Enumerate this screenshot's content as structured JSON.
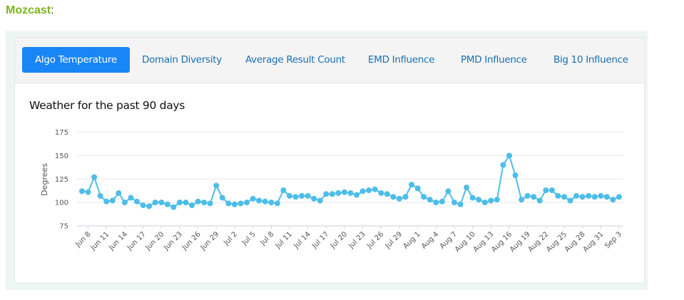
{
  "page": {
    "title": "Mozcast",
    "title_suffix": ":"
  },
  "tabs": [
    {
      "label": "Algo Temperature",
      "active": true
    },
    {
      "label": "Domain Diversity",
      "active": false
    },
    {
      "label": "Average Result Count",
      "active": false
    },
    {
      "label": "EMD Influence",
      "active": false
    },
    {
      "label": "PMD Influence",
      "active": false
    },
    {
      "label": "Big 10 Influence",
      "active": false
    }
  ],
  "colors": {
    "brand_green": "#7cb518",
    "active_tab": "#1886f5",
    "tab_text": "#1a6fb3",
    "series": "#4dbde9",
    "panel_bg": "#eef6f4"
  },
  "chart_data": {
    "type": "line",
    "title": "Weather for the past 90 days",
    "xlabel": "",
    "ylabel": "Degrees",
    "ylim": [
      75,
      175
    ],
    "yticks": [
      75,
      100,
      125,
      150,
      175
    ],
    "grid": true,
    "legend": "none",
    "x": [
      "Jun 7",
      "Jun 8",
      "Jun 9",
      "Jun 10",
      "Jun 11",
      "Jun 12",
      "Jun 13",
      "Jun 14",
      "Jun 15",
      "Jun 16",
      "Jun 17",
      "Jun 18",
      "Jun 19",
      "Jun 20",
      "Jun 21",
      "Jun 22",
      "Jun 23",
      "Jun 24",
      "Jun 25",
      "Jun 26",
      "Jun 27",
      "Jun 28",
      "Jun 29",
      "Jun 30",
      "Jul 1",
      "Jul 2",
      "Jul 3",
      "Jul 4",
      "Jul 5",
      "Jul 6",
      "Jul 7",
      "Jul 8",
      "Jul 9",
      "Jul 10",
      "Jul 11",
      "Jul 12",
      "Jul 13",
      "Jul 14",
      "Jul 15",
      "Jul 16",
      "Jul 17",
      "Jul 18",
      "Jul 19",
      "Jul 20",
      "Jul 21",
      "Jul 22",
      "Jul 23",
      "Jul 24",
      "Jul 25",
      "Jul 26",
      "Jul 27",
      "Jul 28",
      "Jul 29",
      "Jul 30",
      "Jul 31",
      "Aug 1",
      "Aug 2",
      "Aug 3",
      "Aug 4",
      "Aug 5",
      "Aug 6",
      "Aug 7",
      "Aug 8",
      "Aug 9",
      "Aug 10",
      "Aug 11",
      "Aug 12",
      "Aug 13",
      "Aug 14",
      "Aug 15",
      "Aug 16",
      "Aug 17",
      "Aug 18",
      "Aug 19",
      "Aug 20",
      "Aug 21",
      "Aug 22",
      "Aug 23",
      "Aug 24",
      "Aug 25",
      "Aug 26",
      "Aug 27",
      "Aug 28",
      "Aug 29",
      "Aug 30",
      "Aug 31",
      "Sep 1",
      "Sep 2",
      "Sep 3"
    ],
    "xtick_labels": [
      "Jun 8",
      "Jun 11",
      "Jun 14",
      "Jun 17",
      "Jun 20",
      "Jun 23",
      "Jun 26",
      "Jun 29",
      "Jul 2",
      "Jul 5",
      "Jul 8",
      "Jul 11",
      "Jul 14",
      "Jul 17",
      "Jul 20",
      "Jul 23",
      "Jul 26",
      "Jul 29",
      "Aug 1",
      "Aug 4",
      "Aug 7",
      "Aug 10",
      "Aug 13",
      "Aug 16",
      "Aug 19",
      "Aug 22",
      "Aug 25",
      "Aug 28",
      "Aug 31",
      "Sep 3"
    ],
    "series": [
      {
        "name": "Algo Temperature",
        "values": [
          112,
          111,
          127,
          107,
          101,
          102,
          110,
          100,
          105,
          101,
          97,
          96,
          100,
          100,
          98,
          95,
          100,
          100,
          97,
          101,
          100,
          99,
          118,
          105,
          99,
          98,
          99,
          100,
          104,
          102,
          101,
          100,
          99,
          113,
          107,
          106,
          107,
          107,
          104,
          102,
          109,
          109,
          110,
          111,
          110,
          108,
          112,
          113,
          114,
          110,
          109,
          106,
          104,
          106,
          119,
          115,
          106,
          103,
          100,
          101,
          112,
          100,
          98,
          116,
          105,
          103,
          100,
          102,
          103,
          140,
          150,
          129,
          103,
          107,
          106,
          102,
          113,
          113,
          107,
          106,
          102,
          107,
          106,
          107,
          106,
          107,
          106,
          103,
          106
        ]
      }
    ]
  }
}
